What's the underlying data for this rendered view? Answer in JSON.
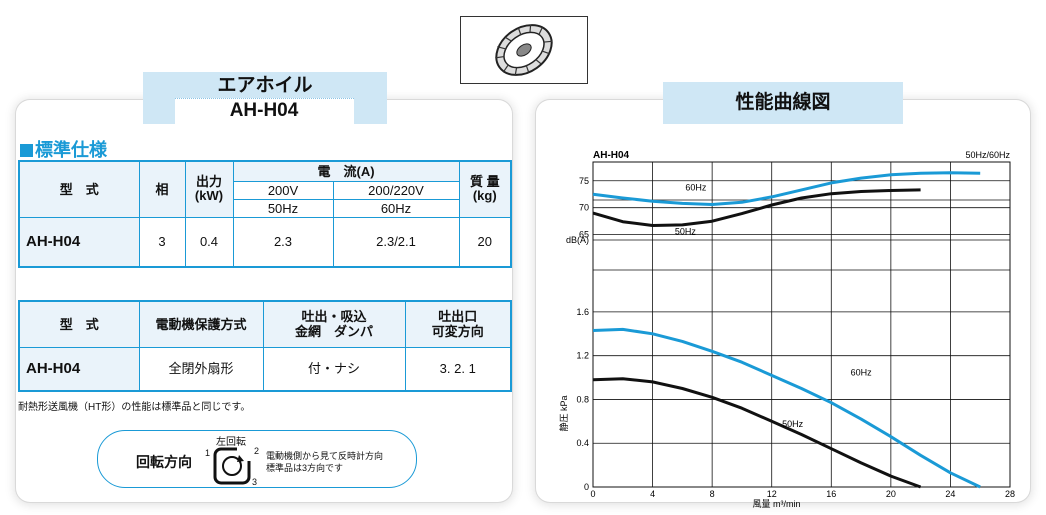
{
  "product_thumbnail_icon": "fan-wheel-icon",
  "left_header": {
    "title_line1": "エアホイル",
    "title_line2": "AH-H04"
  },
  "right_header": {
    "title": "性能曲線図"
  },
  "spec_section": {
    "title": "標準仕様"
  },
  "spec_table1": {
    "col_model": "型　式",
    "col_phase": "相",
    "col_output": "出力\n(kW)",
    "col_current": "電　流(A)",
    "col_voltage_a": "200V",
    "col_voltage_b": "200/220V",
    "col_freq_a": "50Hz",
    "col_freq_b": "60Hz",
    "col_mass": "質 量\n(kg)",
    "row": {
      "model": "AH-H04",
      "phase": "3",
      "output": "0.4",
      "current_50": "2.3",
      "current_60": "2.3/2.1",
      "mass": "20"
    }
  },
  "spec_table2": {
    "col_model": "型　式",
    "col_protection": "電動機保護方式",
    "col_damper": "吐出・吸込\n金網　ダンパ",
    "col_direction": "吐出口\n可変方向",
    "row": {
      "model": "AH-H04",
      "protection": "全閉外扇形",
      "damper": "付・ナシ",
      "direction": "3. 2. 1"
    }
  },
  "note": "耐熱形送風機（HT形）の性能は標準品と同じです。",
  "rotation": {
    "label": "回転方向",
    "direction_label": "左回転",
    "num1": "1",
    "num2": "2",
    "num3": "3",
    "line1": "電動機側から見て反時計方向",
    "line2": "標準品は3方向です",
    "icon": "rotation-arrow-icon"
  },
  "chart_data": {
    "type": "line",
    "title": "AH-H04",
    "legend_note": "50Hz/60Hz",
    "xlabel": "風量 m³/min",
    "x_ticks": [
      "0",
      "4",
      "8",
      "12",
      "16",
      "20",
      "24",
      "28"
    ],
    "xlim": [
      0,
      28
    ],
    "noise": {
      "ylabel": "dB(A)",
      "y_ticks": [
        "65",
        "70",
        "75"
      ],
      "ylim": [
        64,
        77
      ],
      "series": [
        {
          "name": "60Hz",
          "color": "#1a9ad6",
          "x": [
            0,
            2,
            4,
            6,
            8,
            10,
            12,
            14,
            16,
            18,
            20,
            22,
            24,
            26
          ],
          "values": [
            72.5,
            71.8,
            71.2,
            70.8,
            70.6,
            71.0,
            72.0,
            73.3,
            74.6,
            75.5,
            76.1,
            76.4,
            76.5,
            76.4
          ]
        },
        {
          "name": "50Hz",
          "color": "#111111",
          "x": [
            0,
            2,
            4,
            6,
            8,
            10,
            12,
            14,
            16,
            18,
            20,
            22
          ],
          "values": [
            69.0,
            67.4,
            66.7,
            66.8,
            67.5,
            68.9,
            70.5,
            71.8,
            72.6,
            73.0,
            73.2,
            73.3
          ]
        }
      ]
    },
    "pressure": {
      "ylabel": "静圧 kPa",
      "y_ticks": [
        "0",
        "0.4",
        "0.8",
        "1.2",
        "1.6"
      ],
      "ylim": [
        0,
        1.8
      ],
      "series": [
        {
          "name": "60Hz",
          "color": "#1a9ad6",
          "x": [
            0,
            2,
            4,
            6,
            8,
            10,
            12,
            14,
            16,
            18,
            20,
            22,
            24,
            26
          ],
          "values": [
            1.43,
            1.44,
            1.4,
            1.33,
            1.24,
            1.14,
            1.02,
            0.9,
            0.77,
            0.62,
            0.46,
            0.29,
            0.13,
            0.0
          ]
        },
        {
          "name": "50Hz",
          "color": "#111111",
          "x": [
            0,
            2,
            4,
            6,
            8,
            10,
            12,
            14,
            16,
            18,
            20,
            22
          ],
          "values": [
            0.98,
            0.99,
            0.96,
            0.9,
            0.82,
            0.72,
            0.6,
            0.48,
            0.35,
            0.22,
            0.1,
            0.0
          ]
        }
      ]
    }
  }
}
